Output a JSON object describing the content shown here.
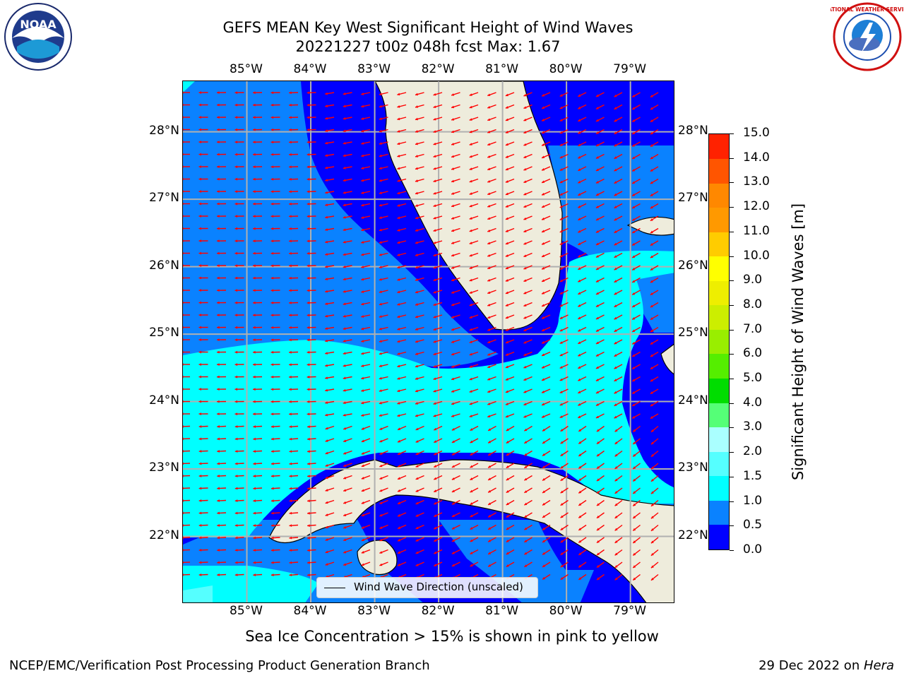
{
  "title_line1": "GEFS MEAN Key West Significant Height of Wind Waves",
  "title_line2": "20221227 t00z 048h fcst   Max: 1.67",
  "map": {
    "lon_ticks": [
      "85°W",
      "84°W",
      "83°W",
      "82°W",
      "81°W",
      "80°W",
      "79°W"
    ],
    "lat_ticks": [
      "28°N",
      "27°N",
      "26°N",
      "25°N",
      "24°N",
      "23°N",
      "22°N"
    ],
    "extent": {
      "lon_min": -86.0,
      "lon_max": -78.3,
      "lat_min": 21.0,
      "lat_max": 28.75
    },
    "land_color": "#eeecdc",
    "grid_color": "#b0b0b0",
    "arrow_color": "#ff0000"
  },
  "colorbar": {
    "label": "Significant Height of Wind Waves [m]",
    "ticks": [
      "0.0",
      "0.5",
      "1.0",
      "1.5",
      "2.0",
      "3.0",
      "4.0",
      "5.0",
      "6.0",
      "7.0",
      "8.0",
      "9.0",
      "10.0",
      "11.0",
      "12.0",
      "13.0",
      "14.0",
      "15.0"
    ],
    "colors": [
      "#0000ff",
      "#0a82ff",
      "#00ffff",
      "#55ffff",
      "#aaffff",
      "#55ff77",
      "#00dd00",
      "#55ee00",
      "#99ee00",
      "#ccee00",
      "#eeee00",
      "#ffff00",
      "#ffcc00",
      "#ff9900",
      "#ff8800",
      "#ff5500",
      "#ff2200"
    ]
  },
  "legend": {
    "label": "Wind Wave Direction (unscaled)"
  },
  "sea_ice_note": "Sea Ice Concentration > 15% is shown in pink to yellow",
  "footer_left": "NCEP/EMC/Verification Post Processing Product Generation Branch",
  "footer_right_date": "29 Dec 2022 on ",
  "footer_right_host": "Hera",
  "logos": {
    "noaa_text": "NOAA",
    "nws_text": "NATIONAL WEATHER SERVICE"
  }
}
